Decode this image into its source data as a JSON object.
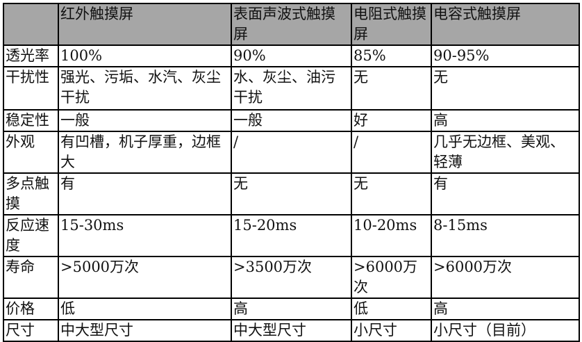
{
  "header_color": "#a6a6a6",
  "columns": [
    "",
    "红外触摸屏",
    "表面声波式触摸屏",
    "电阻式触摸屏",
    "电容式触摸屏"
  ],
  "rows": [
    {
      "label": "透光率",
      "cells": [
        "100%",
        "90%",
        "85%",
        "90-95%"
      ]
    },
    {
      "label": "干扰性",
      "cells": [
        "强光、污垢、水汽、灰尘干扰",
        "水、灰尘、油污干扰",
        "无",
        "无"
      ]
    },
    {
      "label": "稳定性",
      "cells": [
        "一般",
        "一般",
        "好",
        "高"
      ]
    },
    {
      "label": "外观",
      "cells": [
        "有凹槽，机子厚重，边框大",
        "/",
        "/",
        "几乎无边框、美观、轻薄"
      ]
    },
    {
      "label": "多点触摸",
      "cells": [
        "有",
        "无",
        "无",
        "有"
      ]
    },
    {
      "label": "反应速度",
      "cells": [
        "15-30ms",
        "15-20ms",
        "10-20ms",
        "8-15ms"
      ]
    },
    {
      "label": "寿命",
      "cells": [
        ">5000万次",
        ">3500万次",
        ">6000万次",
        ">6000万次"
      ]
    },
    {
      "label": "价格",
      "cells": [
        "低",
        "高",
        "低",
        "高"
      ]
    },
    {
      "label": "尺寸",
      "cells": [
        "中大型尺寸",
        "中大型尺寸",
        "小尺寸",
        "小尺寸（目前）"
      ]
    }
  ]
}
